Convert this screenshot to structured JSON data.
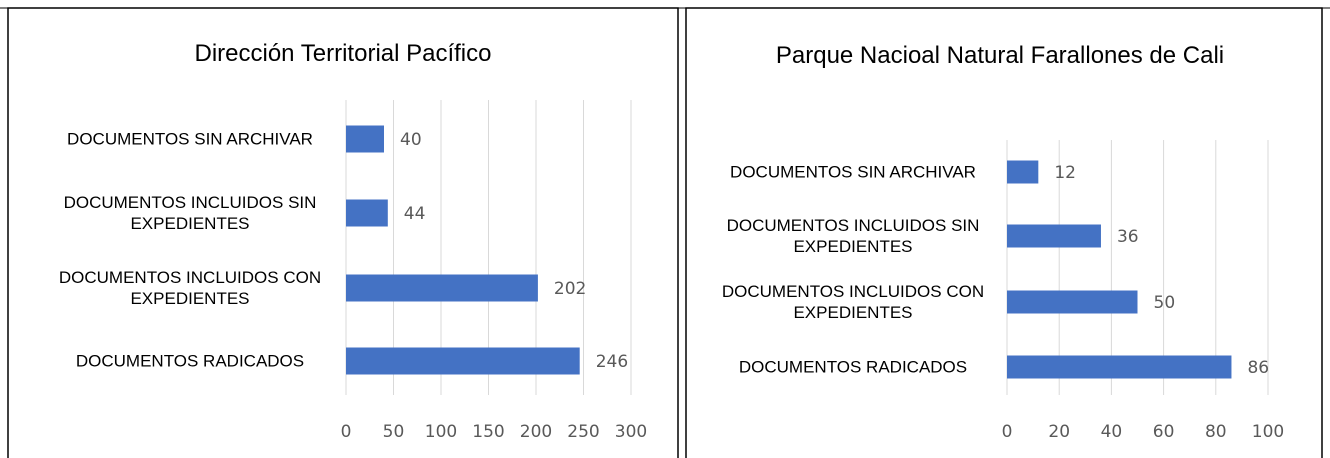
{
  "chart_data": [
    {
      "type": "bar",
      "orientation": "horizontal",
      "title": "Dirección Territorial Pacífico",
      "categories": [
        "DOCUMENTOS SIN ARCHIVAR",
        "DOCUMENTOS INCLUIDOS SIN EXPEDIENTES",
        "DOCUMENTOS INCLUIDOS CON EXPEDIENTES",
        "DOCUMENTOS RADICADOS"
      ],
      "values": [
        40,
        44,
        202,
        246
      ],
      "color": "#4472c4",
      "xlim": [
        0,
        300
      ],
      "xticks": [
        0,
        50,
        100,
        150,
        200,
        250,
        300
      ],
      "grid": true
    },
    {
      "type": "bar",
      "orientation": "horizontal",
      "title": "Parque Nacioal Natural Farallones de Cali",
      "categories": [
        "DOCUMENTOS SIN ARCHIVAR",
        "DOCUMENTOS INCLUIDOS SIN EXPEDIENTES",
        "DOCUMENTOS INCLUIDOS CON EXPEDIENTES",
        "DOCUMENTOS RADICADOS"
      ],
      "values": [
        12,
        36,
        50,
        86
      ],
      "color": "#4472c4",
      "xlim": [
        0,
        100
      ],
      "xticks": [
        0,
        20,
        40,
        60,
        80,
        100
      ],
      "grid": true
    }
  ]
}
